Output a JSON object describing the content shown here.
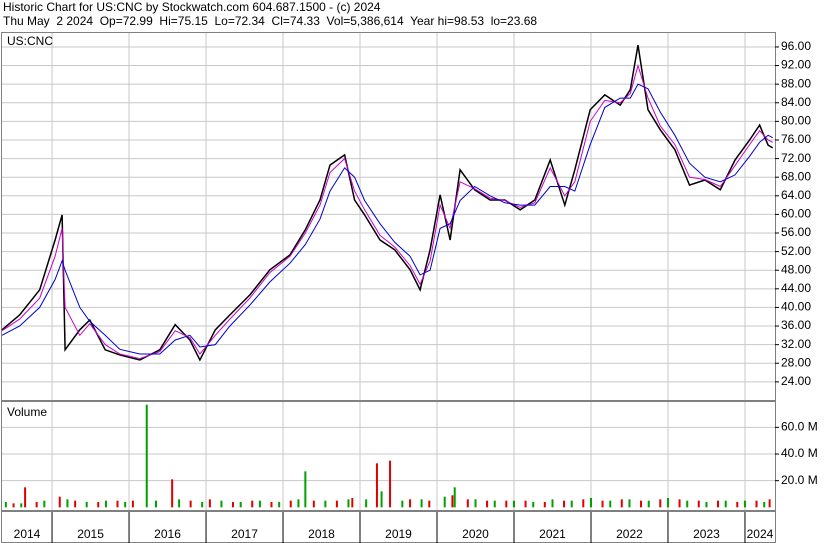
{
  "chart_data": [
    {
      "type": "line",
      "title": "Historic Chart for US:CNC by Stockwatch.com 604.687.1500 - (c) 2024",
      "subtitle": "Thu May  2 2024  Op=72.99  Hi=75.15  Lo=72.34  Cl=74.33  Vol=5,386,614  Year hi=98.53  lo=23.68",
      "label": "US:CNC",
      "x": [
        2014.35,
        2014.58,
        2014.84,
        2015.04,
        2015.13,
        2015.17,
        2015.36,
        2015.49,
        2015.69,
        2015.88,
        2016.14,
        2016.4,
        2016.6,
        2016.79,
        2016.92,
        2017.12,
        2017.31,
        2017.57,
        2017.83,
        2018.09,
        2018.29,
        2018.48,
        2018.61,
        2018.8,
        2018.93,
        2019.06,
        2019.26,
        2019.45,
        2019.65,
        2019.78,
        2019.91,
        2020.04,
        2020.17,
        2020.3,
        2020.49,
        2020.69,
        2020.88,
        2021.08,
        2021.27,
        2021.47,
        2021.66,
        2021.79,
        2021.99,
        2022.18,
        2022.38,
        2022.51,
        2022.61,
        2022.74,
        2022.9,
        2023.09,
        2023.28,
        2023.48,
        2023.68,
        2023.87,
        2024.06,
        2024.19,
        2024.3,
        2024.36
      ],
      "series": [
        {
          "color": "#000000",
          "values": [
            35.2,
            38.4,
            43.8,
            54.5,
            59.9,
            30.9,
            35.2,
            37.3,
            30.9,
            29.8,
            28.7,
            30.9,
            36.3,
            33.0,
            28.7,
            35.2,
            38.4,
            42.7,
            48.1,
            51.3,
            56.7,
            63.1,
            70.6,
            72.8,
            63.1,
            59.9,
            54.5,
            52.4,
            48.1,
            43.8,
            52.4,
            64.2,
            54.5,
            69.6,
            65.3,
            63.1,
            63.1,
            61.0,
            63.1,
            71.7,
            62.0,
            69.6,
            82.5,
            85.7,
            83.5,
            86.8,
            96.4,
            82.5,
            78.2,
            73.9,
            66.3,
            67.4,
            65.3,
            71.7,
            76.0,
            79.2,
            74.9,
            74.3
          ]
        },
        {
          "color": "#cc00cc",
          "values": [
            35,
            37.5,
            42,
            51,
            57,
            40,
            34,
            36.5,
            32,
            30,
            29,
            30.5,
            35,
            33.5,
            30,
            34,
            37.5,
            42,
            47.5,
            51,
            56,
            62,
            69,
            72,
            65,
            61,
            55.5,
            53,
            49,
            45,
            50,
            62,
            57,
            67,
            65.5,
            63.5,
            63,
            61.5,
            62.5,
            70,
            64,
            67,
            80,
            84.5,
            84,
            86,
            92,
            85,
            79,
            75,
            68,
            67.5,
            66,
            70.5,
            75,
            78,
            76,
            75.5
          ]
        },
        {
          "color": "#0000cc",
          "values": [
            34,
            36,
            40,
            46,
            50,
            48,
            40,
            37,
            34,
            31,
            30,
            30,
            33,
            34,
            31.5,
            32,
            36,
            40.5,
            45.5,
            49.5,
            53.5,
            59,
            65,
            70,
            68,
            63,
            58,
            54,
            51,
            47,
            48,
            57,
            58,
            63,
            66,
            64,
            62.5,
            62,
            62,
            66,
            66,
            65,
            75,
            83,
            85,
            85,
            88,
            87,
            82,
            77,
            71,
            68,
            67,
            68.5,
            72.5,
            75.5,
            77,
            76.5
          ]
        }
      ],
      "xlim": [
        2014.35,
        2024.39
      ],
      "ylim": [
        20.1,
        99
      ],
      "yticks": [
        {
          "value": 24,
          "label": "24.00"
        },
        {
          "value": 28,
          "label": "28.00"
        },
        {
          "value": 32,
          "label": "32.00"
        },
        {
          "value": 36,
          "label": "36.00"
        },
        {
          "value": 40,
          "label": "40.00"
        },
        {
          "value": 44,
          "label": "44.00"
        },
        {
          "value": 48,
          "label": "48.00"
        },
        {
          "value": 52,
          "label": "52.00"
        },
        {
          "value": 56,
          "label": "56.00"
        },
        {
          "value": 60,
          "label": "60.00"
        },
        {
          "value": 64,
          "label": "64.00"
        },
        {
          "value": 68,
          "label": "68.00"
        },
        {
          "value": 72,
          "label": "72.00"
        },
        {
          "value": 76,
          "label": "76.00"
        },
        {
          "value": 80,
          "label": "80.00"
        },
        {
          "value": 84,
          "label": "84.00"
        },
        {
          "value": 88,
          "label": "88.00"
        },
        {
          "value": 92,
          "label": "92.00"
        },
        {
          "value": 96,
          "label": "96.00"
        }
      ],
      "grid": true
    },
    {
      "type": "bar",
      "label": "Volume",
      "series": [
        {
          "color": "#00a000",
          "x": [
            2014.4,
            2014.6,
            2014.9,
            2015.2,
            2015.45,
            2015.7,
            2015.95,
            2016.23,
            2016.35,
            2016.65,
            2016.95,
            2017.2,
            2017.45,
            2017.7,
            2017.95,
            2018.2,
            2018.29,
            2018.55,
            2018.85,
            2019.08,
            2019.28,
            2019.55,
            2019.8,
            2020.1,
            2020.23,
            2020.5,
            2020.75,
            2021.0,
            2021.25,
            2021.5,
            2021.75,
            2022.0,
            2022.25,
            2022.5,
            2022.75,
            2023.0,
            2023.25,
            2023.5,
            2023.75,
            2024.0,
            2024.25
          ],
          "values": [
            4,
            3,
            5,
            6,
            4,
            5,
            4,
            77,
            5,
            6,
            4,
            5,
            4,
            5,
            4,
            6,
            27,
            5,
            6,
            6,
            12,
            5,
            6,
            8,
            15,
            6,
            5,
            5,
            4,
            6,
            5,
            7,
            5,
            6,
            5,
            7,
            5,
            4,
            5,
            5,
            4
          ]
        },
        {
          "color": "#e00000",
          "x": [
            2014.5,
            2014.65,
            2014.8,
            2015.1,
            2015.3,
            2015.6,
            2015.85,
            2016.05,
            2016.56,
            2016.8,
            2017.05,
            2017.35,
            2017.6,
            2017.85,
            2018.1,
            2018.4,
            2018.7,
            2018.9,
            2019.22,
            2019.39,
            2019.65,
            2019.9,
            2020.2,
            2020.4,
            2020.65,
            2020.9,
            2021.15,
            2021.4,
            2021.65,
            2021.9,
            2022.15,
            2022.4,
            2022.65,
            2022.9,
            2023.15,
            2023.4,
            2023.65,
            2023.9,
            2024.15,
            2024.32
          ],
          "values": [
            3,
            15,
            4,
            8,
            5,
            4,
            5,
            5,
            21,
            5,
            6,
            4,
            5,
            4,
            5,
            5,
            5,
            7,
            33,
            35,
            6,
            5,
            9,
            6,
            5,
            5,
            5,
            4,
            5,
            6,
            5,
            6,
            5,
            6,
            6,
            5,
            5,
            4,
            5,
            6
          ]
        }
      ],
      "xlim": [
        2014.35,
        2024.39
      ],
      "ylim": [
        -2,
        79
      ],
      "yticks": [
        {
          "value": 20,
          "label": "20.0 M"
        },
        {
          "value": 40,
          "label": "40.0 M"
        },
        {
          "value": 60,
          "label": "60.0 M"
        }
      ],
      "xticks": [
        2014,
        2015,
        2016,
        2017,
        2018,
        2019,
        2020,
        2021,
        2022,
        2023,
        2024
      ],
      "grid": true
    }
  ]
}
